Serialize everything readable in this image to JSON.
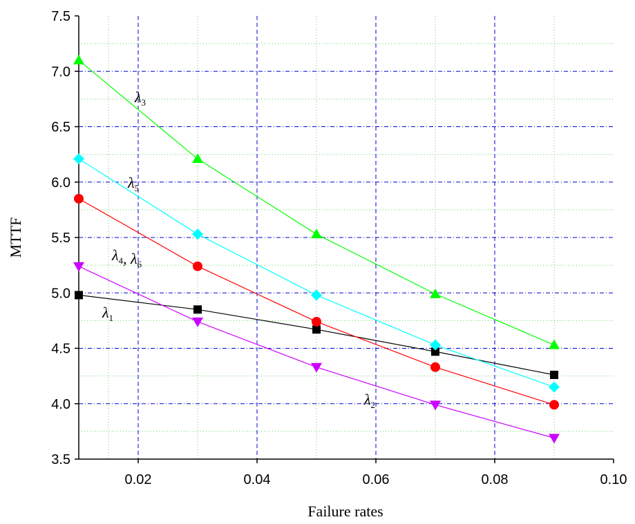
{
  "chart_data": {
    "type": "line",
    "x_label": "Failure rates",
    "y_label": "MTTF",
    "x": [
      0.01,
      0.03,
      0.05,
      0.07,
      0.09
    ],
    "series": [
      {
        "color": "#000000",
        "marker": "square",
        "values": [
          4.98,
          4.85,
          4.67,
          4.47,
          4.26
        ]
      },
      {
        "color": "#ff0000",
        "marker": "circle",
        "values": [
          5.85,
          5.24,
          4.74,
          4.33,
          3.99
        ]
      },
      {
        "color": "#00ff00",
        "marker": "triangle-up",
        "values": [
          7.1,
          6.21,
          5.53,
          4.99,
          4.53
        ]
      },
      {
        "color": "#00ffff",
        "marker": "diamond",
        "values": [
          6.21,
          5.53,
          4.98,
          4.53,
          4.15
        ]
      },
      {
        "color": "#cc00ff",
        "marker": "triangle-down",
        "values": [
          5.24,
          4.74,
          4.33,
          3.99,
          3.69
        ]
      }
    ],
    "xlim": [
      0.01,
      0.1
    ],
    "ylim": [
      3.5,
      7.5
    ],
    "xticks": [
      0.02,
      0.04,
      0.06,
      0.08,
      {
        "value": 0.1,
        "label": "0.10"
      }
    ],
    "yticks": [
      3.5,
      {
        "value": 4,
        "label": "4.0"
      },
      4.5,
      {
        "value": 5,
        "label": "5.0"
      },
      5.5,
      {
        "value": 6,
        "label": "6.0"
      },
      6.5,
      {
        "value": 7,
        "label": "7.0"
      },
      7.5
    ],
    "grid": true,
    "annotations": [
      {
        "segments": [
          {
            "text": "λ",
            "sub": "3"
          }
        ]
      },
      {
        "segments": [
          {
            "text": "λ",
            "sub": "5"
          }
        ]
      },
      {
        "segments": [
          {
            "text": "λ",
            "sub": "4"
          },
          {
            "text": ", λ",
            "sub": "6"
          }
        ]
      },
      {
        "segments": [
          {
            "text": "λ",
            "sub": "1"
          }
        ]
      },
      {
        "segments": [
          {
            "text": "λ",
            "sub": "2"
          }
        ]
      }
    ]
  }
}
